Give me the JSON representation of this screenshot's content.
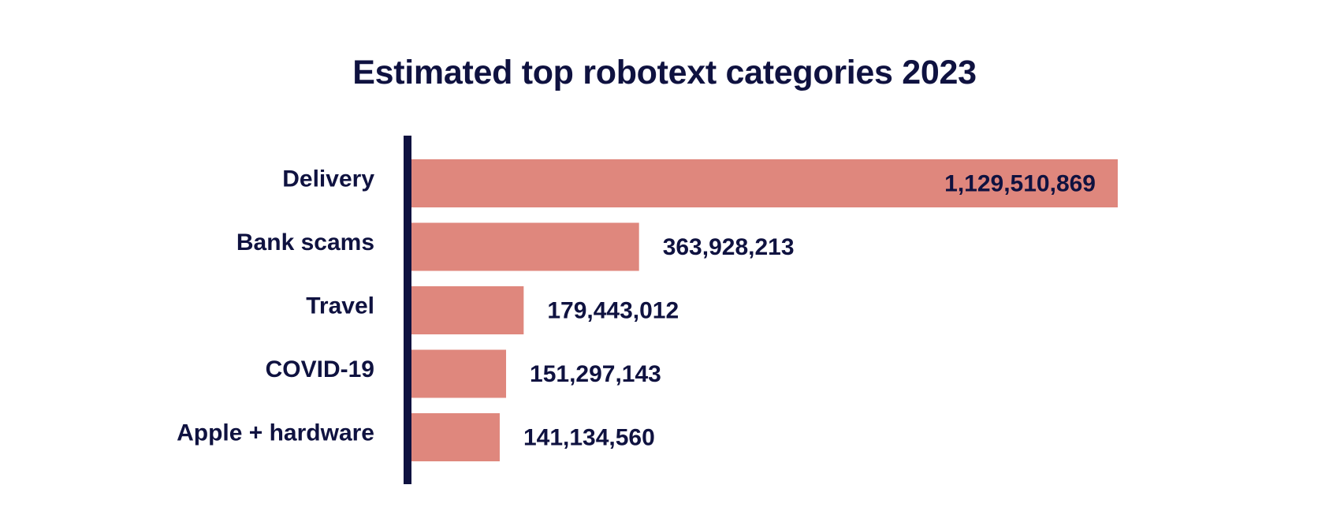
{
  "chart_data": {
    "type": "bar",
    "orientation": "horizontal",
    "title": "Estimated top robotext categories 2023",
    "xlabel": "",
    "ylabel": "",
    "categories": [
      "Delivery",
      "Bank scams",
      "Travel",
      "COVID-19",
      "Apple + hardware"
    ],
    "values": [
      1129510869,
      363928213,
      179443012,
      151297143,
      141134560
    ],
    "value_labels": [
      "1,129,510,869",
      "363,928,213",
      "179,443,012",
      "151,297,143",
      "141,134,560"
    ],
    "xlim": [
      0,
      1129510869
    ],
    "grid": false,
    "legend": "none",
    "colors": {
      "bar": "#df877d",
      "axis": "#0f1240",
      "text": "#0f1240"
    }
  }
}
